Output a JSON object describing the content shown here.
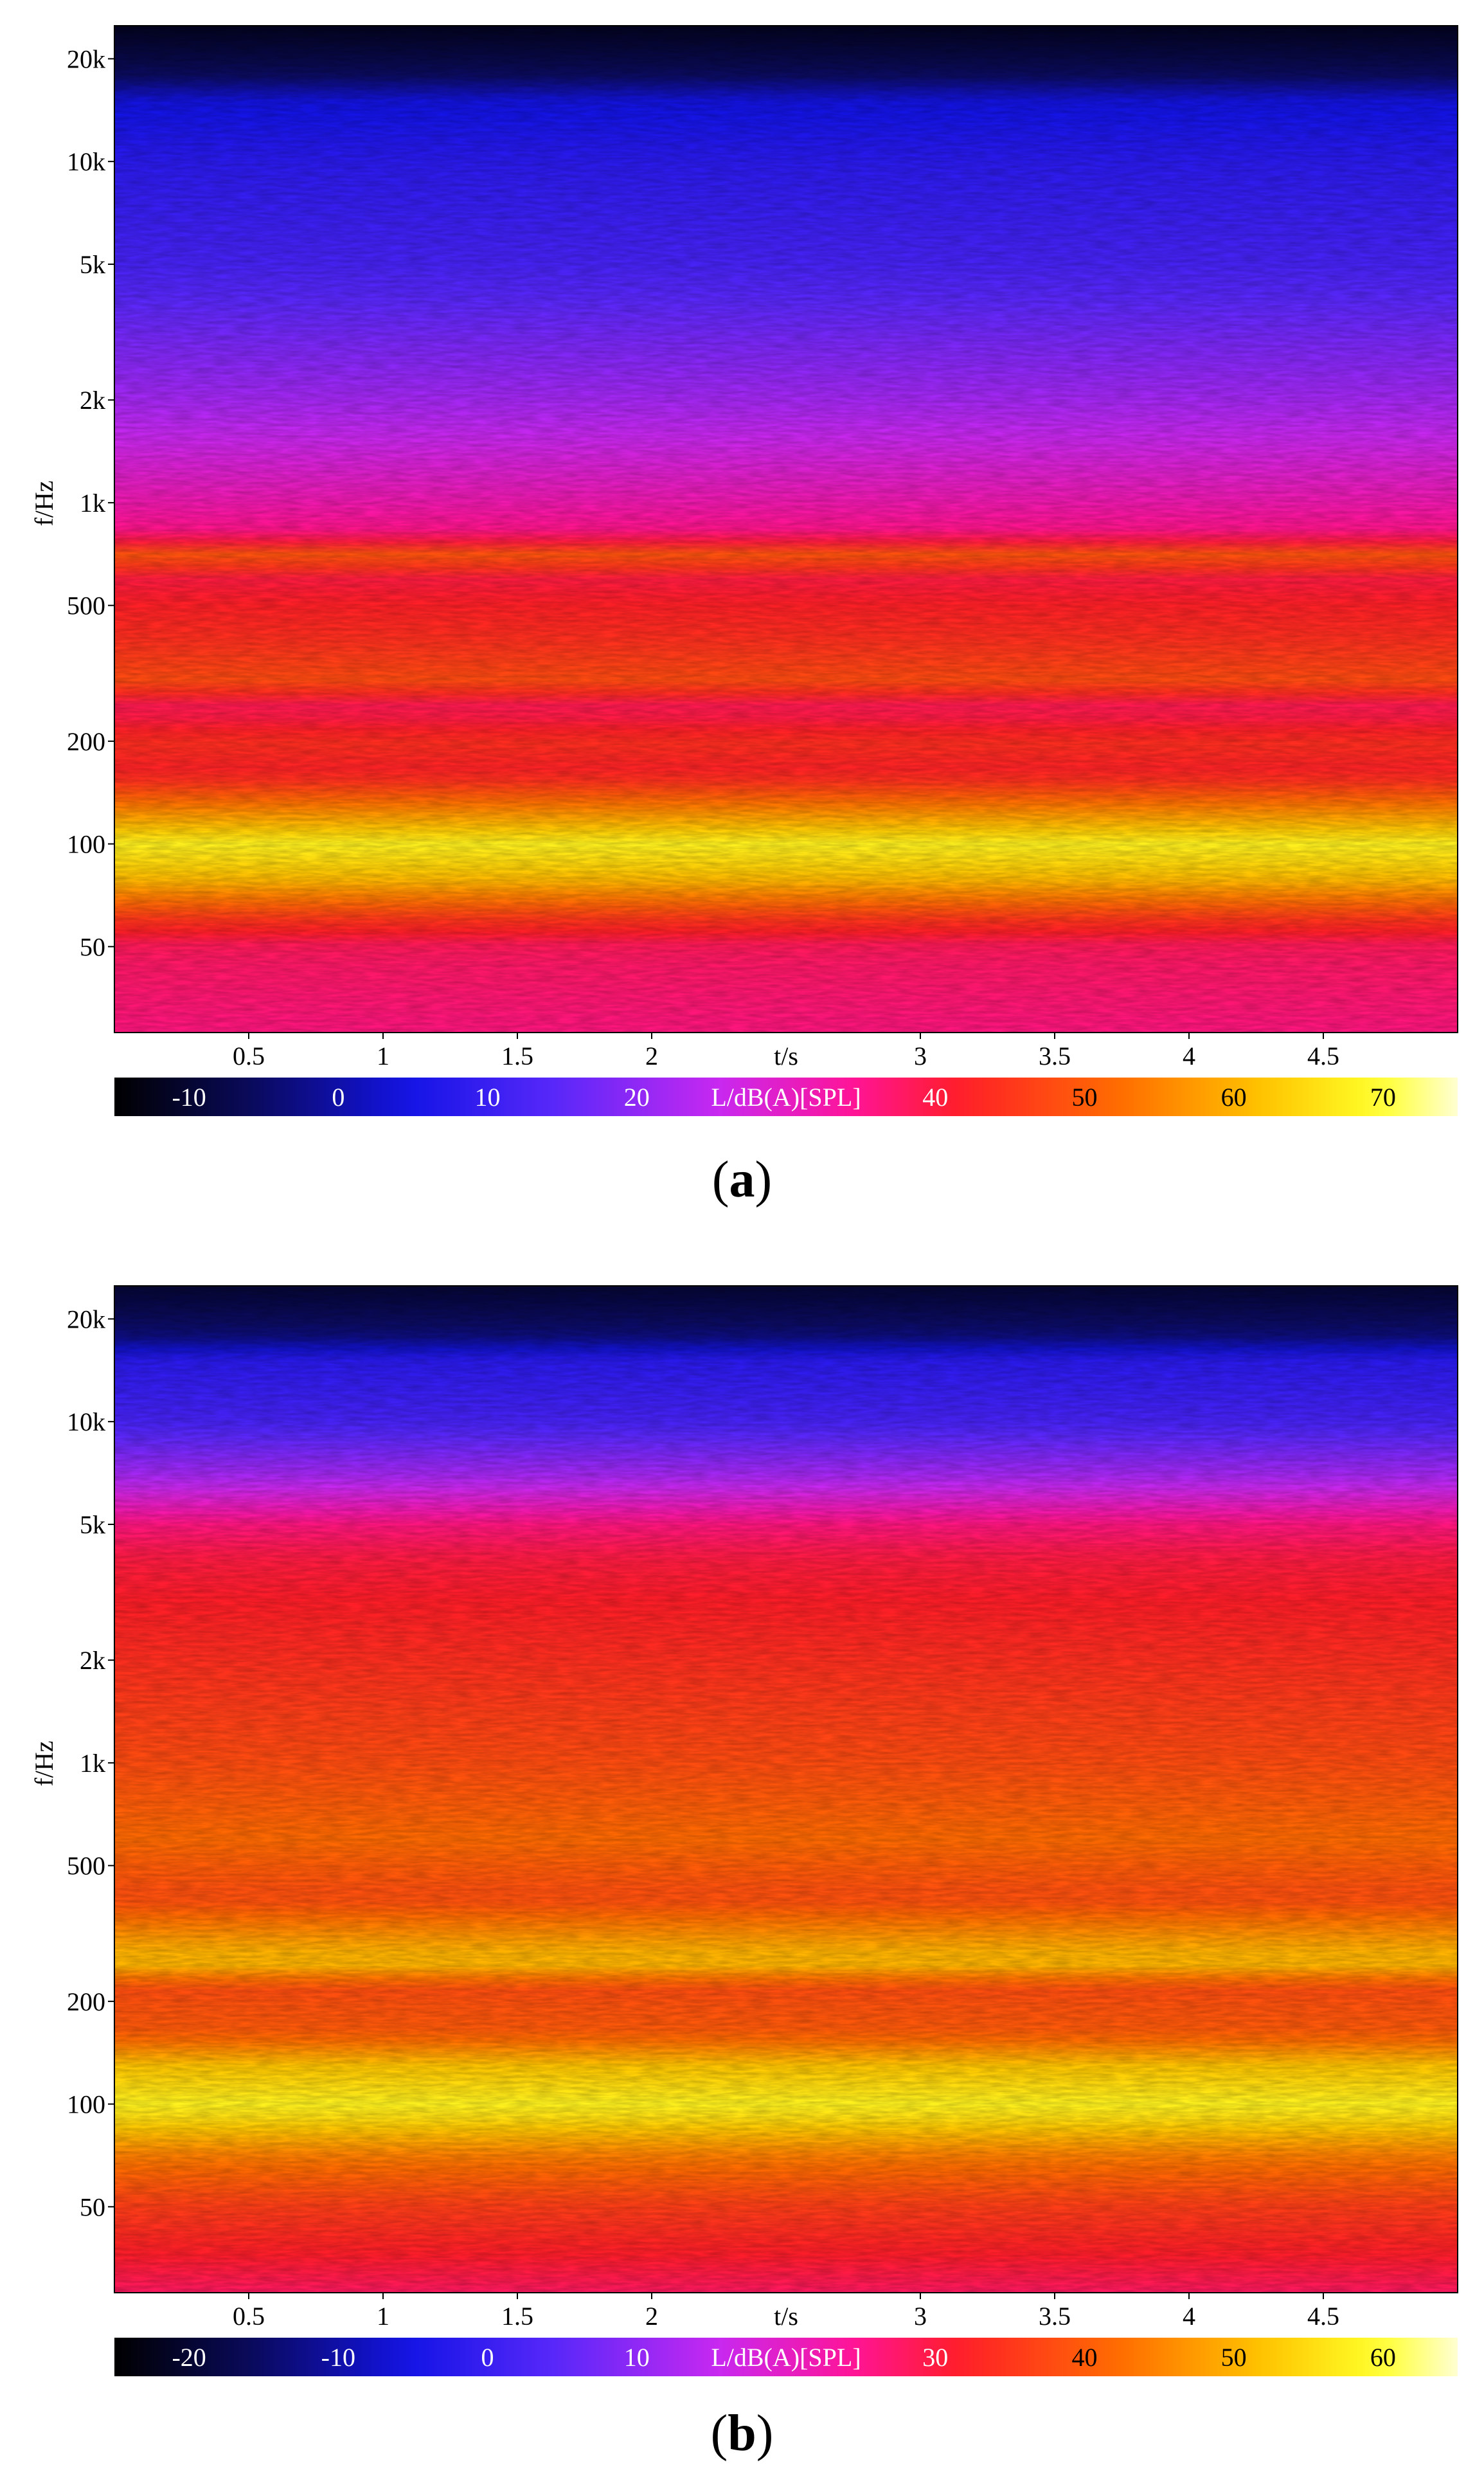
{
  "chart_data": [
    {
      "type": "heatmap",
      "caption": "(a)",
      "caption_letter": "a",
      "ylabel": "f/Hz",
      "xlabel": "t/s",
      "x_range": [
        0,
        5
      ],
      "y_scale": "log",
      "y_range": [
        28,
        25000
      ],
      "x_ticks": [
        {
          "value": 0.5,
          "label": "0.5"
        },
        {
          "value": 1,
          "label": "1"
        },
        {
          "value": 1.5,
          "label": "1.5"
        },
        {
          "value": 2,
          "label": "2"
        },
        {
          "value": 3,
          "label": "3"
        },
        {
          "value": 3.5,
          "label": "3.5"
        },
        {
          "value": 4,
          "label": "4"
        },
        {
          "value": 4.5,
          "label": "4.5"
        }
      ],
      "y_ticks": [
        {
          "value": 50,
          "label": "50"
        },
        {
          "value": 100,
          "label": "100"
        },
        {
          "value": 200,
          "label": "200"
        },
        {
          "value": 500,
          "label": "500"
        },
        {
          "value": 1000,
          "label": "1k"
        },
        {
          "value": 2000,
          "label": "2k"
        },
        {
          "value": 5000,
          "label": "5k"
        },
        {
          "value": 10000,
          "label": "10k"
        },
        {
          "value": 20000,
          "label": "20k"
        }
      ],
      "colorbar": {
        "label": "L/dB(A)[SPL]",
        "min": -15,
        "max": 75,
        "ticks": [
          {
            "value": -10,
            "label": "-10"
          },
          {
            "value": 0,
            "label": "0"
          },
          {
            "value": 10,
            "label": "10"
          },
          {
            "value": 20,
            "label": "20"
          },
          {
            "value": 40,
            "label": "40"
          },
          {
            "value": 50,
            "label": "50"
          },
          {
            "value": 60,
            "label": "60"
          },
          {
            "value": 70,
            "label": "70"
          }
        ]
      },
      "level_profile": [
        {
          "f": 28,
          "db": 36
        },
        {
          "f": 50,
          "db": 38
        },
        {
          "f": 60,
          "db": 45
        },
        {
          "f": 80,
          "db": 62
        },
        {
          "f": 100,
          "db": 68
        },
        {
          "f": 120,
          "db": 58
        },
        {
          "f": 160,
          "db": 42
        },
        {
          "f": 200,
          "db": 44
        },
        {
          "f": 250,
          "db": 38
        },
        {
          "f": 300,
          "db": 48
        },
        {
          "f": 400,
          "db": 44
        },
        {
          "f": 500,
          "db": 42
        },
        {
          "f": 600,
          "db": 40
        },
        {
          "f": 700,
          "db": 50
        },
        {
          "f": 800,
          "db": 36
        },
        {
          "f": 1000,
          "db": 32
        },
        {
          "f": 2000,
          "db": 22
        },
        {
          "f": 5000,
          "db": 12
        },
        {
          "f": 10000,
          "db": 8
        },
        {
          "f": 15000,
          "db": 4
        },
        {
          "f": 18000,
          "db": -6
        },
        {
          "f": 25000,
          "db": -12
        }
      ]
    },
    {
      "type": "heatmap",
      "caption": "(b)",
      "caption_letter": "b",
      "ylabel": "f/Hz",
      "xlabel": "t/s",
      "x_range": [
        0,
        5
      ],
      "y_scale": "log",
      "y_range": [
        28,
        25000
      ],
      "x_ticks": [
        {
          "value": 0.5,
          "label": "0.5"
        },
        {
          "value": 1,
          "label": "1"
        },
        {
          "value": 1.5,
          "label": "1.5"
        },
        {
          "value": 2,
          "label": "2"
        },
        {
          "value": 3,
          "label": "3"
        },
        {
          "value": 3.5,
          "label": "3.5"
        },
        {
          "value": 4,
          "label": "4"
        },
        {
          "value": 4.5,
          "label": "4.5"
        }
      ],
      "y_ticks": [
        {
          "value": 50,
          "label": "50"
        },
        {
          "value": 100,
          "label": "100"
        },
        {
          "value": 200,
          "label": "200"
        },
        {
          "value": 500,
          "label": "500"
        },
        {
          "value": 1000,
          "label": "1k"
        },
        {
          "value": 2000,
          "label": "2k"
        },
        {
          "value": 5000,
          "label": "5k"
        },
        {
          "value": 10000,
          "label": "10k"
        },
        {
          "value": 20000,
          "label": "20k"
        }
      ],
      "colorbar": {
        "label": "L/dB(A)[SPL]",
        "min": -25,
        "max": 65,
        "ticks": [
          {
            "value": -20,
            "label": "-20"
          },
          {
            "value": -10,
            "label": "-10"
          },
          {
            "value": 0,
            "label": "0"
          },
          {
            "value": 10,
            "label": "10"
          },
          {
            "value": 30,
            "label": "30"
          },
          {
            "value": 40,
            "label": "40"
          },
          {
            "value": 50,
            "label": "50"
          },
          {
            "value": 60,
            "label": "60"
          }
        ]
      },
      "level_profile": [
        {
          "f": 28,
          "db": 28
        },
        {
          "f": 50,
          "db": 36
        },
        {
          "f": 70,
          "db": 44
        },
        {
          "f": 90,
          "db": 55
        },
        {
          "f": 100,
          "db": 58
        },
        {
          "f": 130,
          "db": 52
        },
        {
          "f": 160,
          "db": 40
        },
        {
          "f": 220,
          "db": 38
        },
        {
          "f": 260,
          "db": 52
        },
        {
          "f": 300,
          "db": 48
        },
        {
          "f": 400,
          "db": 38
        },
        {
          "f": 600,
          "db": 42
        },
        {
          "f": 1000,
          "db": 38
        },
        {
          "f": 2000,
          "db": 34
        },
        {
          "f": 4000,
          "db": 30
        },
        {
          "f": 5000,
          "db": 26
        },
        {
          "f": 7000,
          "db": 12
        },
        {
          "f": 10000,
          "db": 2
        },
        {
          "f": 15000,
          "db": -2
        },
        {
          "f": 18000,
          "db": -14
        },
        {
          "f": 25000,
          "db": -20
        }
      ]
    }
  ]
}
